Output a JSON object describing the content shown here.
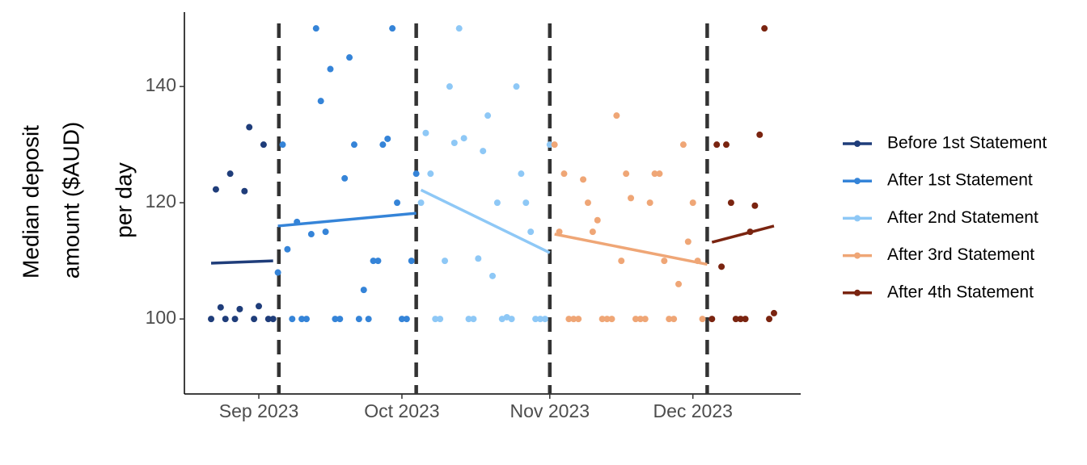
{
  "chart_data": {
    "type": "scatter",
    "ylabel": [
      "Median deposit",
      "amount ($AUD)",
      "per day"
    ],
    "xlim": [
      -15.6,
      113.6
    ],
    "xticks": [
      {
        "value": 0,
        "label": "Sep 2023"
      },
      {
        "value": 30,
        "label": "Oct 2023"
      },
      {
        "value": 61,
        "label": "Nov 2023"
      },
      {
        "value": 91,
        "label": "Dec 2023"
      }
    ],
    "ylim": [
      87.1,
      152.8
    ],
    "yticks": [
      100,
      120,
      140
    ],
    "vlines": [
      4.2,
      33,
      61,
      94
    ],
    "legend": "right",
    "series": [
      {
        "name": "Before 1st Statement",
        "color": "#1f3d7a",
        "x": [
          -10,
          -9,
          -8,
          -7,
          -6,
          -5,
          -4,
          -3,
          -2,
          -1,
          0,
          1,
          2,
          3
        ],
        "values": [
          100,
          122.3,
          102,
          100,
          125,
          100,
          101.7,
          122,
          133,
          100,
          102.2,
          130,
          100,
          100
        ],
        "trend_x": [
          -10,
          3
        ],
        "trend": [
          109.6,
          110
        ]
      },
      {
        "name": "After 1st Statement",
        "color": "#3584d8",
        "x": [
          4,
          5,
          6,
          7,
          8,
          9,
          10,
          11,
          12,
          13,
          14,
          15,
          16,
          17,
          18,
          19,
          20,
          21,
          22,
          23,
          24,
          25,
          26,
          27,
          28,
          29,
          30,
          31,
          32,
          33
        ],
        "values": [
          108,
          130,
          112,
          100,
          116.7,
          100,
          100,
          114.6,
          150,
          137.5,
          115,
          143,
          100,
          100,
          124.2,
          145,
          130,
          100,
          105,
          100,
          110,
          110,
          130,
          131,
          150,
          120,
          100,
          100,
          110,
          125
        ],
        "trend_x": [
          4,
          33
        ],
        "trend": [
          116,
          118.2
        ]
      },
      {
        "name": "After 2nd Statement",
        "color": "#8ec8f6",
        "x": [
          34,
          35,
          36,
          37,
          38,
          39,
          40,
          41,
          42,
          43,
          44,
          45,
          46,
          47,
          48,
          49,
          50,
          51,
          52,
          53,
          54,
          55,
          56,
          57,
          58,
          59,
          60,
          61
        ],
        "values": [
          120,
          132,
          125,
          100,
          100,
          110,
          140,
          130.3,
          150,
          131.1,
          100,
          100,
          110.4,
          128.9,
          135,
          107.4,
          120,
          100,
          100.3,
          100,
          140,
          125,
          120,
          115,
          100,
          100,
          100,
          130
        ],
        "trend_x": [
          34,
          61
        ],
        "trend": [
          122.2,
          111.4
        ]
      },
      {
        "name": "After 3rd Statement",
        "color": "#efa676",
        "x": [
          62,
          63,
          64,
          65,
          66,
          67,
          68,
          69,
          70,
          71,
          72,
          73,
          74,
          75,
          76,
          77,
          78,
          79,
          80,
          81,
          82,
          83,
          84,
          85,
          86,
          87,
          88,
          89,
          90,
          91,
          92,
          93
        ],
        "values": [
          130,
          115,
          125,
          100,
          100,
          100,
          124,
          120,
          115,
          117,
          100,
          100,
          100,
          135,
          110,
          125,
          120.8,
          100,
          100,
          100,
          120,
          125,
          125,
          110,
          100,
          100,
          106,
          130,
          113.3,
          120,
          110,
          100
        ],
        "trend_x": [
          62,
          94
        ],
        "trend": [
          114.6,
          109.4
        ]
      },
      {
        "name": "After 4th Statement",
        "color": "#7a2410",
        "x": [
          95,
          96,
          97,
          98,
          99,
          100,
          101,
          102,
          103,
          104,
          105,
          106,
          107,
          108
        ],
        "values": [
          100,
          130,
          109,
          130,
          120,
          100,
          100,
          100,
          115,
          119.5,
          131.7,
          150,
          100,
          101
        ],
        "trend_x": [
          95,
          108
        ],
        "trend": [
          113.2,
          116
        ]
      }
    ]
  }
}
